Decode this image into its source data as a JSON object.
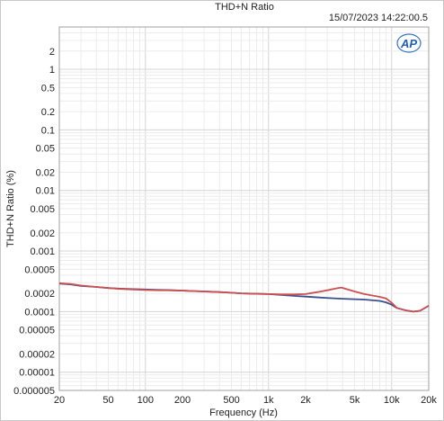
{
  "chart_data": {
    "type": "line",
    "title": "THD+N Ratio",
    "timestamp": "15/07/2023 14:22:00.5",
    "logo": "AP",
    "xlabel": "Frequency (Hz)",
    "ylabel": "THD+N Ratio (%)",
    "x_scale": "log",
    "y_scale": "log",
    "xlim": [
      20,
      20000
    ],
    "ylim": [
      5e-06,
      5
    ],
    "grid": true,
    "x_ticks": [
      {
        "value": 20,
        "label": "20"
      },
      {
        "value": 50,
        "label": "50"
      },
      {
        "value": 100,
        "label": "100"
      },
      {
        "value": 200,
        "label": "200"
      },
      {
        "value": 500,
        "label": "500"
      },
      {
        "value": 1000,
        "label": "1k"
      },
      {
        "value": 2000,
        "label": "2k"
      },
      {
        "value": 5000,
        "label": "5k"
      },
      {
        "value": 10000,
        "label": "10k"
      },
      {
        "value": 20000,
        "label": "20k"
      }
    ],
    "y_ticks": [
      {
        "value": 2,
        "label": "2"
      },
      {
        "value": 1,
        "label": "1"
      },
      {
        "value": 0.5,
        "label": "0.5"
      },
      {
        "value": 0.2,
        "label": "0.2"
      },
      {
        "value": 0.1,
        "label": "0.1"
      },
      {
        "value": 0.05,
        "label": "0.05"
      },
      {
        "value": 0.02,
        "label": "0.02"
      },
      {
        "value": 0.01,
        "label": "0.01"
      },
      {
        "value": 0.005,
        "label": "0.005"
      },
      {
        "value": 0.002,
        "label": "0.002"
      },
      {
        "value": 0.001,
        "label": "0.001"
      },
      {
        "value": 0.0005,
        "label": "0.0005"
      },
      {
        "value": 0.0002,
        "label": "0.0002"
      },
      {
        "value": 0.0001,
        "label": "0.0001"
      },
      {
        "value": 5e-05,
        "label": "0.00005"
      },
      {
        "value": 2e-05,
        "label": "0.00002"
      },
      {
        "value": 1e-05,
        "label": "0.00001"
      },
      {
        "value": 5e-06,
        "label": "0.000005"
      }
    ],
    "series": [
      {
        "color": "#3a4f8c",
        "x": [
          20,
          25,
          30,
          40,
          50,
          60,
          80,
          100,
          130,
          150,
          200,
          250,
          300,
          400,
          500,
          600,
          800,
          1000,
          1300,
          1600,
          2000,
          2500,
          3000,
          4000,
          5000,
          6000,
          8000,
          9000,
          10000,
          11000,
          13000,
          15000,
          17000,
          20000
        ],
        "y": [
          0.00029,
          0.00028,
          0.000265,
          0.000255,
          0.000245,
          0.00024,
          0.000235,
          0.000232,
          0.000228,
          0.000227,
          0.000222,
          0.000218,
          0.000215,
          0.00021,
          0.000205,
          0.0002,
          0.000197,
          0.000195,
          0.000188,
          0.000182,
          0.000177,
          0.000172,
          0.000168,
          0.000163,
          0.00016,
          0.000158,
          0.00015,
          0.000142,
          0.00013,
          0.000115,
          0.000105,
          0.0001,
          0.000103,
          0.000125
        ]
      },
      {
        "color": "#cc5050",
        "x": [
          20,
          25,
          30,
          40,
          50,
          60,
          80,
          100,
          130,
          150,
          200,
          250,
          300,
          400,
          500,
          600,
          800,
          1000,
          1300,
          1600,
          2000,
          2500,
          3000,
          3500,
          3900,
          4300,
          5000,
          6000,
          8000,
          9000,
          10000,
          11000,
          13000,
          15000,
          17000,
          20000
        ],
        "y": [
          0.000295,
          0.000285,
          0.00027,
          0.000255,
          0.000245,
          0.000238,
          0.000232,
          0.000228,
          0.000225,
          0.000225,
          0.000222,
          0.000218,
          0.000215,
          0.00021,
          0.000205,
          0.0002,
          0.000197,
          0.000195,
          0.000192,
          0.000192,
          0.000195,
          0.00021,
          0.000225,
          0.00024,
          0.00025,
          0.000235,
          0.000215,
          0.000195,
          0.000175,
          0.000165,
          0.00014,
          0.000115,
          0.000105,
          0.0001,
          0.000103,
          0.000125
        ]
      }
    ]
  }
}
